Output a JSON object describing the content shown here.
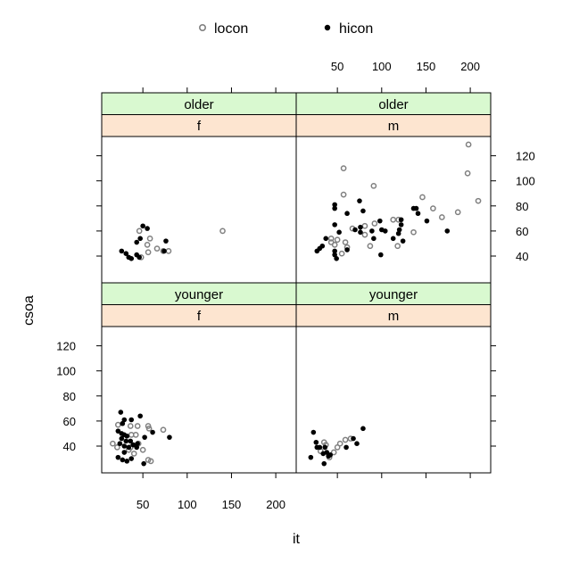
{
  "chart_data": {
    "type": "scatter",
    "xlabel": "it",
    "ylabel": "csoa",
    "xlim": [
      0,
      220
    ],
    "ylim": [
      25,
      135
    ],
    "x_ticks": [
      50,
      100,
      150,
      200
    ],
    "y_ticks": [
      40,
      60,
      80,
      100,
      120
    ],
    "legend": {
      "position": "top",
      "entries": [
        {
          "name": "locon",
          "marker": "open-circle",
          "color": "#808080"
        },
        {
          "name": "hicon",
          "marker": "filled-circle",
          "color": "#000000"
        }
      ]
    },
    "strip_colors": {
      "outer": "#d9f9d0",
      "inner": "#fde5d0"
    },
    "panels": [
      {
        "outer": "older",
        "inner": "f",
        "locon": [
          [
            46,
            60
          ],
          [
            58,
            54
          ],
          [
            55,
            49
          ],
          [
            56,
            43
          ],
          [
            66,
            46
          ],
          [
            73,
            44
          ],
          [
            79,
            44
          ],
          [
            140,
            60
          ],
          [
            48,
            39
          ]
        ],
        "hicon": [
          [
            50,
            64
          ],
          [
            55,
            62
          ],
          [
            47,
            54
          ],
          [
            43,
            51
          ],
          [
            76,
            52
          ],
          [
            26,
            44
          ],
          [
            31,
            42
          ],
          [
            34,
            39
          ],
          [
            37,
            38
          ],
          [
            43,
            41
          ],
          [
            46,
            39
          ],
          [
            74,
            44
          ]
        ]
      },
      {
        "outer": "older",
        "inner": "m",
        "locon": [
          [
            198,
            129
          ],
          [
            197,
            106
          ],
          [
            209,
            84
          ],
          [
            57,
            110
          ],
          [
            91,
            96
          ],
          [
            57,
            89
          ],
          [
            146,
            87
          ],
          [
            158,
            78
          ],
          [
            186,
            75
          ],
          [
            168,
            71
          ],
          [
            136,
            59
          ],
          [
            119,
            69
          ],
          [
            113,
            69
          ],
          [
            92,
            66
          ],
          [
            81,
            64
          ],
          [
            67,
            62
          ],
          [
            81,
            57
          ],
          [
            87,
            48
          ],
          [
            118,
            48
          ],
          [
            43,
            54
          ],
          [
            50,
            53
          ],
          [
            59,
            51
          ],
          [
            47,
            49
          ],
          [
            61,
            47
          ],
          [
            55,
            42
          ],
          [
            43,
            51
          ]
        ],
        "hicon": [
          [
            47,
            81
          ],
          [
            47,
            78
          ],
          [
            75,
            84
          ],
          [
            79,
            76
          ],
          [
            61,
            74
          ],
          [
            47,
            65
          ],
          [
            52,
            59
          ],
          [
            70,
            61
          ],
          [
            76,
            63
          ],
          [
            76,
            59
          ],
          [
            89,
            60
          ],
          [
            98,
            68
          ],
          [
            100,
            61
          ],
          [
            104,
            60
          ],
          [
            91,
            54
          ],
          [
            113,
            54
          ],
          [
            122,
            69
          ],
          [
            122,
            65
          ],
          [
            120,
            61
          ],
          [
            119,
            58
          ],
          [
            124,
            52
          ],
          [
            136,
            78
          ],
          [
            139,
            78
          ],
          [
            141,
            74
          ],
          [
            151,
            68
          ],
          [
            174,
            60
          ],
          [
            99,
            41
          ],
          [
            37,
            54
          ],
          [
            33,
            48
          ],
          [
            30,
            46
          ],
          [
            27,
            44
          ],
          [
            47,
            44
          ],
          [
            47,
            41
          ],
          [
            49,
            38
          ],
          [
            61,
            45
          ]
        ]
      },
      {
        "outer": "younger",
        "inner": "f",
        "locon": [
          [
            22,
            57
          ],
          [
            36,
            56
          ],
          [
            44,
            56
          ],
          [
            56,
            56
          ],
          [
            57,
            54
          ],
          [
            73,
            53
          ],
          [
            37,
            49
          ],
          [
            42,
            49
          ],
          [
            16,
            42
          ],
          [
            21,
            39
          ],
          [
            34,
            37
          ],
          [
            45,
            42
          ],
          [
            50,
            37
          ],
          [
            56,
            29
          ],
          [
            59,
            28
          ],
          [
            40,
            34
          ],
          [
            36,
            39
          ]
        ],
        "hicon": [
          [
            25,
            67
          ],
          [
            29,
            61
          ],
          [
            37,
            61
          ],
          [
            47,
            64
          ],
          [
            27,
            58
          ],
          [
            22,
            52
          ],
          [
            26,
            50
          ],
          [
            29,
            49
          ],
          [
            32,
            48
          ],
          [
            26,
            46
          ],
          [
            31,
            44
          ],
          [
            36,
            44
          ],
          [
            24,
            42
          ],
          [
            29,
            40
          ],
          [
            34,
            39
          ],
          [
            39,
            41
          ],
          [
            44,
            42
          ],
          [
            61,
            51
          ],
          [
            52,
            47
          ],
          [
            80,
            47
          ],
          [
            22,
            31
          ],
          [
            27,
            29
          ],
          [
            32,
            28
          ],
          [
            37,
            30
          ],
          [
            51,
            26
          ],
          [
            43,
            39
          ],
          [
            29,
            35
          ]
        ]
      },
      {
        "outer": "younger",
        "inner": "m",
        "locon": [
          [
            35,
            43
          ],
          [
            37,
            41
          ],
          [
            31,
            36
          ],
          [
            46,
            35
          ],
          [
            50,
            39
          ],
          [
            53,
            42
          ],
          [
            59,
            45
          ],
          [
            65,
            46
          ],
          [
            41,
            31
          ]
        ],
        "hicon": [
          [
            23,
            51
          ],
          [
            79,
            54
          ],
          [
            20,
            31
          ],
          [
            35,
            26
          ],
          [
            26,
            43
          ],
          [
            27,
            39
          ],
          [
            30,
            39
          ],
          [
            36,
            39
          ],
          [
            38,
            35
          ],
          [
            40,
            32
          ],
          [
            34,
            34
          ],
          [
            60,
            39
          ],
          [
            68,
            46
          ],
          [
            72,
            42
          ],
          [
            42,
            33
          ]
        ]
      }
    ]
  }
}
